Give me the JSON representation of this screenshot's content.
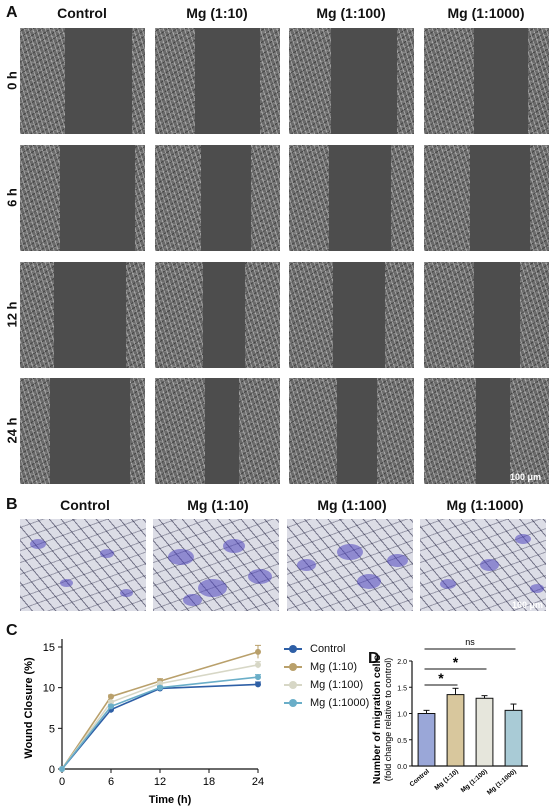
{
  "panel_labels": {
    "a": "A",
    "b": "B",
    "c": "C",
    "d": "D"
  },
  "groups": [
    "Control",
    "Mg (1:10)",
    "Mg (1:100)",
    "Mg (1:1000)"
  ],
  "time_rows": [
    "0 h",
    "6 h",
    "12 h",
    "24 h"
  ],
  "scale_bar": "100 μm",
  "colors": {
    "control": "#2e5fa6",
    "mg_1_10": "#b9a06b",
    "mg_1_100": "#d7d7c6",
    "mg_1_1000": "#6aaec8",
    "bar_control": "#9aa7d8",
    "bar_mg_1_10": "#d8c79d",
    "bar_mg_1_100": "#e6e6dc",
    "bar_mg_1_1000": "#a9cbd6"
  },
  "chart_data": [
    {
      "type": "line",
      "xlabel": "Time (h)",
      "ylabel": "Wound Closure (%)",
      "x": [
        0,
        6,
        12,
        24
      ],
      "xticks": [
        0,
        6,
        12,
        18,
        24
      ],
      "yticks": [
        0,
        5,
        10,
        15
      ],
      "xlim": [
        0,
        24
      ],
      "ylim": [
        0,
        15
      ],
      "series": [
        {
          "name": "Control",
          "values": [
            0,
            7.3,
            9.9,
            10.4
          ],
          "errors": [
            0,
            0.4,
            0.2,
            0.3
          ]
        },
        {
          "name": "Mg (1:10)",
          "values": [
            0,
            8.9,
            10.8,
            14.4
          ],
          "errors": [
            0,
            0.2,
            0.3,
            0.8
          ]
        },
        {
          "name": "Mg (1:100)",
          "values": [
            0,
            8.2,
            10.5,
            12.8
          ],
          "errors": [
            0,
            0.2,
            0.2,
            0.4
          ]
        },
        {
          "name": "Mg (1:1000)",
          "values": [
            0,
            7.7,
            10.0,
            11.3
          ],
          "errors": [
            0,
            0.2,
            0.2,
            0.3
          ]
        }
      ],
      "legend": "right"
    },
    {
      "type": "bar",
      "ylabel": "Number of migration cells",
      "ylabel_sub": "(fold change relative to control)",
      "categories": [
        "Control",
        "Mg (1:10)",
        "Mg (1:100)",
        "Mg (1:1000)"
      ],
      "values": [
        1.0,
        1.36,
        1.29,
        1.06
      ],
      "errors": [
        0.06,
        0.12,
        0.05,
        0.12
      ],
      "ylim": [
        0,
        2.0
      ],
      "yticks": [
        0.0,
        0.5,
        1.0,
        1.5,
        2.0
      ],
      "annotations": [
        {
          "text": "ns",
          "from": "Control",
          "to": "Mg (1:1000)"
        },
        {
          "text": "*",
          "from": "Control",
          "to": "Mg (1:100)"
        },
        {
          "text": "*",
          "from": "Control",
          "to": "Mg (1:10)"
        }
      ]
    }
  ]
}
